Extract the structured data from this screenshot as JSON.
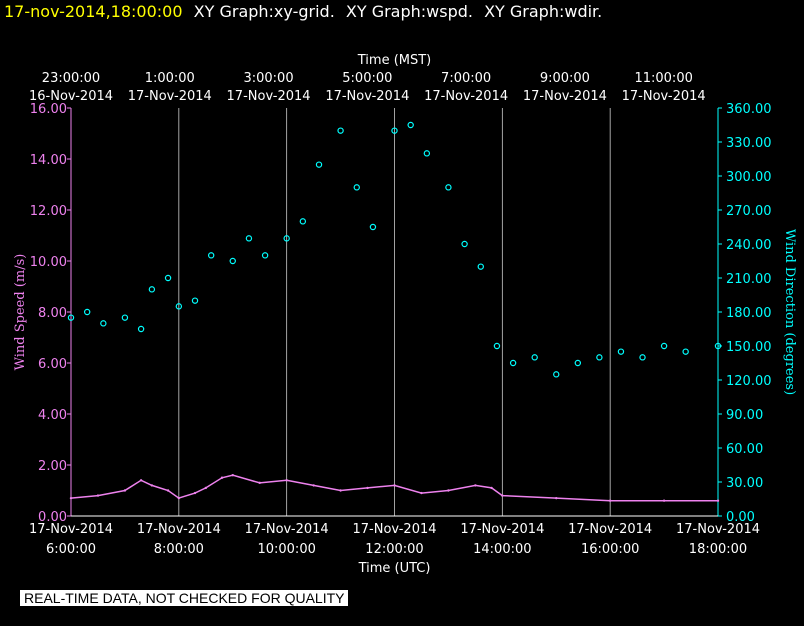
{
  "header": {
    "timestamp": "17-nov-2014,18:00:00",
    "graphs": [
      "XY Graph:xy-grid.",
      "XY Graph:wspd.",
      "XY Graph:wdir."
    ]
  },
  "disclaimer": "REAL-TIME DATA, NOT CHECKED FOR QUALITY",
  "colors": {
    "speed": "#ee82ee",
    "direction": "#00ffff",
    "grid": "#ffffff",
    "background": "#000000",
    "timestamp": "#ffff00"
  },
  "chart_data": {
    "type": "scatter",
    "title": "",
    "top_axis": {
      "label": "Time (MST)",
      "ticks": [
        {
          "time": "23:00:00",
          "date": "16-Nov-2014"
        },
        {
          "time": "1:00:00",
          "date": "17-Nov-2014"
        },
        {
          "time": "3:00:00",
          "date": "17-Nov-2014"
        },
        {
          "time": "5:00:00",
          "date": "17-Nov-2014"
        },
        {
          "time": "7:00:00",
          "date": "17-Nov-2014"
        },
        {
          "time": "9:00:00",
          "date": "17-Nov-2014"
        },
        {
          "time": "11:00:00",
          "date": "17-Nov-2014"
        }
      ]
    },
    "bottom_axis": {
      "label": "Time (UTC)",
      "ticks": [
        {
          "date": "17-Nov-2014",
          "time": "6:00:00"
        },
        {
          "date": "17-Nov-2014",
          "time": "8:00:00"
        },
        {
          "date": "17-Nov-2014",
          "time": "10:00:00"
        },
        {
          "date": "17-Nov-2014",
          "time": "12:00:00"
        },
        {
          "date": "17-Nov-2014",
          "time": "14:00:00"
        },
        {
          "date": "17-Nov-2014",
          "time": "16:00:00"
        },
        {
          "date": "17-Nov-2014",
          "time": "18:00:00"
        }
      ],
      "range_utc_hours": [
        6,
        18
      ]
    },
    "y_left": {
      "label": "Wind Speed (m/s)",
      "ylim": [
        0,
        16
      ],
      "ticks": [
        "0.00",
        "2.00",
        "4.00",
        "6.00",
        "8.00",
        "10.00",
        "12.00",
        "14.00",
        "16.00"
      ]
    },
    "y_right": {
      "label": "Wind Direction (degrees)",
      "ylim": [
        0,
        360
      ],
      "ticks": [
        "0.00",
        "30.00",
        "60.00",
        "90.00",
        "120.00",
        "150.00",
        "180.00",
        "210.00",
        "240.00",
        "270.00",
        "300.00",
        "330.00",
        "360.00"
      ]
    },
    "grid": "vertical",
    "series": [
      {
        "axis": "left",
        "style": "line",
        "hours_utc": [
          6.0,
          6.5,
          7.0,
          7.3,
          7.5,
          7.8,
          8.0,
          8.3,
          8.5,
          8.8,
          9.0,
          9.5,
          10.0,
          10.5,
          11.0,
          11.5,
          12.0,
          12.5,
          13.0,
          13.5,
          13.8,
          14.0,
          15.0,
          16.0,
          17.0,
          18.0
        ],
        "values": [
          0.7,
          0.8,
          1.0,
          1.4,
          1.2,
          1.0,
          0.7,
          0.9,
          1.1,
          1.5,
          1.6,
          1.3,
          1.4,
          1.2,
          1.0,
          1.1,
          1.2,
          0.9,
          1.0,
          1.2,
          1.1,
          0.8,
          0.7,
          0.6,
          0.6,
          0.6
        ]
      },
      {
        "axis": "right",
        "style": "markers",
        "hours_utc": [
          6.0,
          6.3,
          6.6,
          7.0,
          7.3,
          7.5,
          7.8,
          8.0,
          8.3,
          8.6,
          9.0,
          9.3,
          9.6,
          10.0,
          10.3,
          10.6,
          11.0,
          11.3,
          11.6,
          12.0,
          12.3,
          12.6,
          13.0,
          13.3,
          13.6,
          13.9,
          14.2,
          14.6,
          15.0,
          15.4,
          15.8,
          16.2,
          16.6,
          17.0,
          17.4,
          18.0
        ],
        "values": [
          175,
          180,
          170,
          175,
          165,
          200,
          210,
          185,
          190,
          230,
          225,
          245,
          230,
          245,
          260,
          310,
          340,
          290,
          255,
          340,
          345,
          320,
          290,
          240,
          220,
          150,
          135,
          140,
          125,
          135,
          140,
          145,
          140,
          150,
          145,
          150
        ]
      }
    ]
  }
}
